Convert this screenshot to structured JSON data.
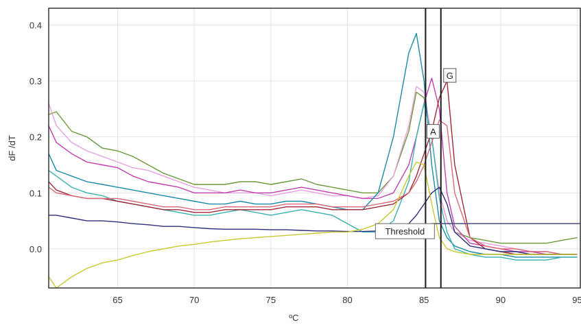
{
  "chart_data": {
    "type": "line",
    "xlabel": "ºC",
    "ylabel": "dF /dT",
    "xlim": [
      60.5,
      95.2
    ],
    "ylim": [
      -0.07,
      0.43
    ],
    "x_ticks": [
      65,
      70,
      75,
      80,
      85,
      90,
      95
    ],
    "y_ticks": [
      0.0,
      0.1,
      0.2,
      0.3,
      0.4
    ],
    "y_tick_labels": [
      "0.0",
      "0.1",
      "0.2",
      "0.3",
      "0.4"
    ],
    "grid": true,
    "threshold": {
      "label": "Threshold",
      "y": 0.045,
      "x_start": 85.5
    },
    "vertical_markers": [
      {
        "label": "A",
        "x": 85.1
      },
      {
        "label": "G",
        "x": 86.1
      }
    ],
    "series": [
      {
        "color": "#6a9a3a",
        "x": [
          60.5,
          61,
          62,
          63,
          64,
          65,
          66,
          67,
          68,
          69,
          70,
          71,
          72,
          73,
          74,
          75,
          76,
          77,
          78,
          79,
          80,
          81,
          82,
          83,
          84,
          84.5,
          85,
          85.5,
          86,
          86.5,
          87,
          88,
          89,
          90,
          91,
          92,
          93,
          94,
          95
        ],
        "y": [
          0.24,
          0.245,
          0.21,
          0.2,
          0.18,
          0.175,
          0.165,
          0.15,
          0.135,
          0.125,
          0.115,
          0.115,
          0.115,
          0.12,
          0.12,
          0.115,
          0.12,
          0.125,
          0.115,
          0.11,
          0.105,
          0.1,
          0.1,
          0.13,
          0.21,
          0.28,
          0.27,
          0.2,
          0.1,
          0.05,
          0.03,
          0.02,
          0.015,
          0.01,
          0.01,
          0.01,
          0.01,
          0.015,
          0.02
        ]
      },
      {
        "color": "#e8a0e0",
        "x": [
          60.5,
          61,
          62,
          63,
          64,
          65,
          66,
          67,
          68,
          69,
          70,
          71,
          72,
          73,
          74,
          75,
          76,
          77,
          78,
          79,
          80,
          81,
          82,
          83,
          84,
          84.5,
          85,
          85.5,
          86,
          86.5,
          87,
          88,
          89,
          90,
          91,
          92,
          93,
          94,
          95
        ],
        "y": [
          0.26,
          0.22,
          0.19,
          0.175,
          0.165,
          0.155,
          0.145,
          0.14,
          0.13,
          0.12,
          0.11,
          0.105,
          0.1,
          0.1,
          0.1,
          0.095,
          0.1,
          0.105,
          0.1,
          0.095,
          0.095,
          0.09,
          0.095,
          0.13,
          0.22,
          0.29,
          0.28,
          0.2,
          0.1,
          0.05,
          0.03,
          0.015,
          0.01,
          0.005,
          0.0,
          -0.005,
          -0.005,
          -0.01,
          -0.01
        ]
      },
      {
        "color": "#c040b0",
        "x": [
          60.5,
          61,
          62,
          63,
          64,
          65,
          66,
          67,
          68,
          69,
          70,
          71,
          72,
          73,
          74,
          75,
          76,
          77,
          78,
          79,
          80,
          81,
          82,
          83,
          84,
          84.5,
          85,
          85.5,
          86,
          86.5,
          87,
          88,
          89,
          90,
          91,
          92,
          93,
          94,
          95
        ],
        "y": [
          0.22,
          0.19,
          0.17,
          0.155,
          0.15,
          0.145,
          0.13,
          0.12,
          0.115,
          0.11,
          0.1,
          0.1,
          0.1,
          0.105,
          0.1,
          0.1,
          0.105,
          0.11,
          0.105,
          0.1,
          0.095,
          0.09,
          0.09,
          0.1,
          0.15,
          0.2,
          0.26,
          0.305,
          0.25,
          0.1,
          0.04,
          0.01,
          0.005,
          0.0,
          -0.005,
          -0.005,
          -0.01,
          -0.01,
          -0.01
        ]
      },
      {
        "color": "#1a8aa8",
        "x": [
          60.5,
          61,
          62,
          63,
          64,
          65,
          66,
          67,
          68,
          69,
          70,
          71,
          72,
          73,
          74,
          75,
          76,
          77,
          78,
          79,
          80,
          81,
          82,
          83,
          84,
          84.5,
          85,
          85.5,
          86,
          86.5,
          87,
          88,
          89,
          90,
          91,
          92,
          93,
          94,
          95
        ],
        "y": [
          0.17,
          0.14,
          0.13,
          0.12,
          0.115,
          0.11,
          0.105,
          0.1,
          0.095,
          0.09,
          0.085,
          0.08,
          0.08,
          0.085,
          0.08,
          0.08,
          0.085,
          0.085,
          0.08,
          0.075,
          0.07,
          0.07,
          0.1,
          0.2,
          0.35,
          0.385,
          0.3,
          0.15,
          0.05,
          0.02,
          0.005,
          -0.005,
          -0.01,
          -0.01,
          -0.015,
          -0.015,
          -0.015,
          -0.015,
          -0.015
        ]
      },
      {
        "color": "#3ab0b0",
        "x": [
          60.5,
          61,
          62,
          63,
          64,
          65,
          66,
          67,
          68,
          69,
          70,
          71,
          72,
          73,
          74,
          75,
          76,
          77,
          78,
          79,
          80,
          81,
          82,
          83,
          84,
          84.5,
          85,
          85.5,
          86,
          86.5,
          87,
          88,
          89,
          90,
          91,
          92,
          93,
          94,
          95
        ],
        "y": [
          0.14,
          0.13,
          0.11,
          0.1,
          0.095,
          0.085,
          0.08,
          0.075,
          0.07,
          0.065,
          0.06,
          0.06,
          0.065,
          0.07,
          0.065,
          0.06,
          0.065,
          0.07,
          0.065,
          0.06,
          0.045,
          0.03,
          0.03,
          0.05,
          0.12,
          0.2,
          0.26,
          0.2,
          0.09,
          0.03,
          0.0,
          -0.01,
          -0.015,
          -0.015,
          -0.02,
          -0.02,
          -0.02,
          -0.015,
          -0.015
        ]
      },
      {
        "color": "#a02838",
        "x": [
          60.5,
          61,
          62,
          63,
          64,
          65,
          66,
          67,
          68,
          69,
          70,
          71,
          72,
          73,
          74,
          75,
          76,
          77,
          78,
          79,
          80,
          81,
          82,
          83,
          84,
          84.5,
          85,
          85.5,
          86,
          86.5,
          87,
          88,
          89,
          90,
          91,
          92,
          93,
          94,
          95
        ],
        "y": [
          0.12,
          0.105,
          0.095,
          0.09,
          0.09,
          0.085,
          0.08,
          0.075,
          0.07,
          0.07,
          0.065,
          0.065,
          0.07,
          0.07,
          0.07,
          0.07,
          0.075,
          0.075,
          0.075,
          0.07,
          0.07,
          0.07,
          0.075,
          0.08,
          0.1,
          0.13,
          0.17,
          0.21,
          0.27,
          0.3,
          0.15,
          0.02,
          0.0,
          -0.005,
          -0.01,
          -0.01,
          -0.01,
          -0.01,
          -0.01
        ]
      },
      {
        "color": "#d86878",
        "x": [
          60.5,
          61,
          62,
          63,
          64,
          65,
          66,
          67,
          68,
          69,
          70,
          71,
          72,
          73,
          74,
          75,
          76,
          77,
          78,
          79,
          80,
          81,
          82,
          83,
          84,
          84.5,
          85,
          85.5,
          86,
          86.5,
          87,
          88,
          89,
          90,
          91,
          92,
          93,
          94,
          95
        ],
        "y": [
          0.11,
          0.1,
          0.095,
          0.09,
          0.09,
          0.09,
          0.085,
          0.08,
          0.075,
          0.075,
          0.07,
          0.07,
          0.075,
          0.075,
          0.075,
          0.075,
          0.08,
          0.08,
          0.08,
          0.075,
          0.075,
          0.075,
          0.08,
          0.085,
          0.1,
          0.12,
          0.15,
          0.19,
          0.23,
          0.22,
          0.1,
          0.02,
          0.005,
          0.0,
          0.0,
          -0.005,
          -0.005,
          -0.01,
          -0.01
        ]
      },
      {
        "color": "#2e2e7a",
        "x": [
          60.5,
          61,
          62,
          63,
          64,
          65,
          66,
          67,
          68,
          69,
          70,
          71,
          72,
          73,
          74,
          75,
          76,
          77,
          78,
          79,
          80,
          81,
          82,
          83,
          84,
          84.5,
          85,
          85.5,
          86,
          86.5,
          87,
          88,
          89,
          90,
          91,
          92,
          93,
          94,
          95
        ],
        "y": [
          0.06,
          0.06,
          0.055,
          0.05,
          0.05,
          0.048,
          0.045,
          0.043,
          0.04,
          0.04,
          0.038,
          0.036,
          0.035,
          0.035,
          0.035,
          0.034,
          0.034,
          0.033,
          0.032,
          0.032,
          0.031,
          0.031,
          0.032,
          0.035,
          0.045,
          0.06,
          0.08,
          0.1,
          0.11,
          0.08,
          0.03,
          0.005,
          0.0,
          -0.005,
          -0.005,
          -0.01,
          -0.01,
          -0.01,
          -0.01
        ]
      },
      {
        "color": "#c8c830",
        "x": [
          60.5,
          61,
          62,
          63,
          64,
          65,
          66,
          67,
          68,
          69,
          70,
          71,
          72,
          73,
          74,
          75,
          76,
          77,
          78,
          79,
          80,
          81,
          82,
          83,
          84,
          84.5,
          85,
          85.5,
          86,
          86.5,
          87,
          88,
          89,
          90,
          91,
          92,
          93,
          94,
          95
        ],
        "y": [
          -0.05,
          -0.07,
          -0.05,
          -0.035,
          -0.025,
          -0.02,
          -0.012,
          -0.005,
          0.0,
          0.005,
          0.008,
          0.012,
          0.015,
          0.018,
          0.02,
          0.022,
          0.024,
          0.026,
          0.028,
          0.03,
          0.03,
          0.035,
          0.045,
          0.07,
          0.13,
          0.155,
          0.15,
          0.08,
          0.02,
          0.0,
          -0.005,
          -0.01,
          -0.01,
          -0.01,
          -0.01,
          -0.01,
          -0.01,
          -0.01,
          -0.01
        ]
      }
    ]
  }
}
